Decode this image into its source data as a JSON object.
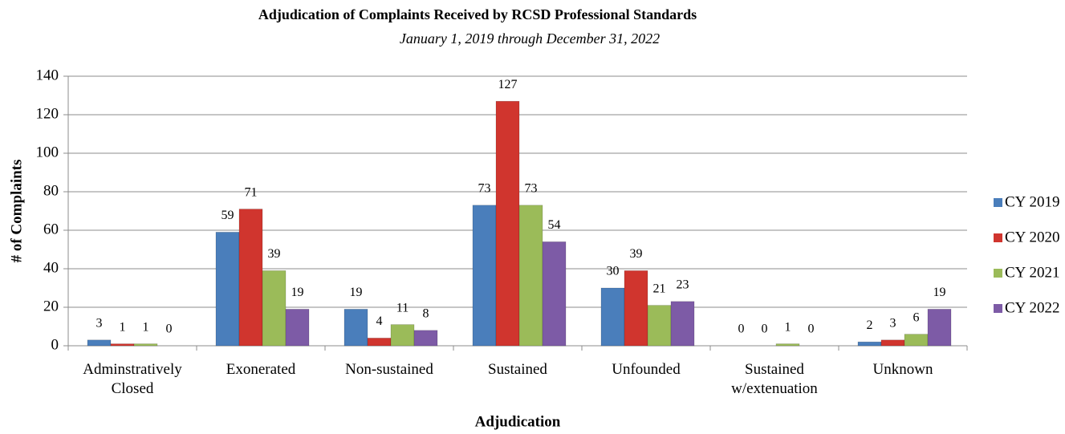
{
  "chart_data": {
    "type": "bar",
    "title": "Adjudication of Complaints Received by RCSD Professional Standards",
    "subtitle": "January 1, 2019 through December 31, 2022",
    "x_label": "Adjudication",
    "y_label": "# of Complaints",
    "categories": [
      "Adminstratively Closed",
      "Exonerated",
      "Non-sustained",
      "Sustained",
      "Unfounded",
      "Sustained w/extenuation",
      "Unknown"
    ],
    "series": [
      {
        "name": "CY 2019",
        "color": "#4a7ebb",
        "values": [
          3,
          59,
          19,
          73,
          30,
          0,
          2
        ]
      },
      {
        "name": "CY 2020",
        "color": "#d0352e",
        "values": [
          1,
          71,
          4,
          127,
          39,
          0,
          3
        ]
      },
      {
        "name": "CY 2021",
        "color": "#9bbb59",
        "values": [
          1,
          39,
          11,
          73,
          21,
          1,
          6
        ]
      },
      {
        "name": "CY 2022",
        "color": "#7d5ba6",
        "values": [
          0,
          19,
          8,
          54,
          23,
          0,
          19
        ]
      }
    ],
    "ylim": [
      0,
      140
    ],
    "yticks": [
      0,
      20,
      40,
      60,
      80,
      100,
      120,
      140
    ],
    "grid": true,
    "legend": "right"
  }
}
